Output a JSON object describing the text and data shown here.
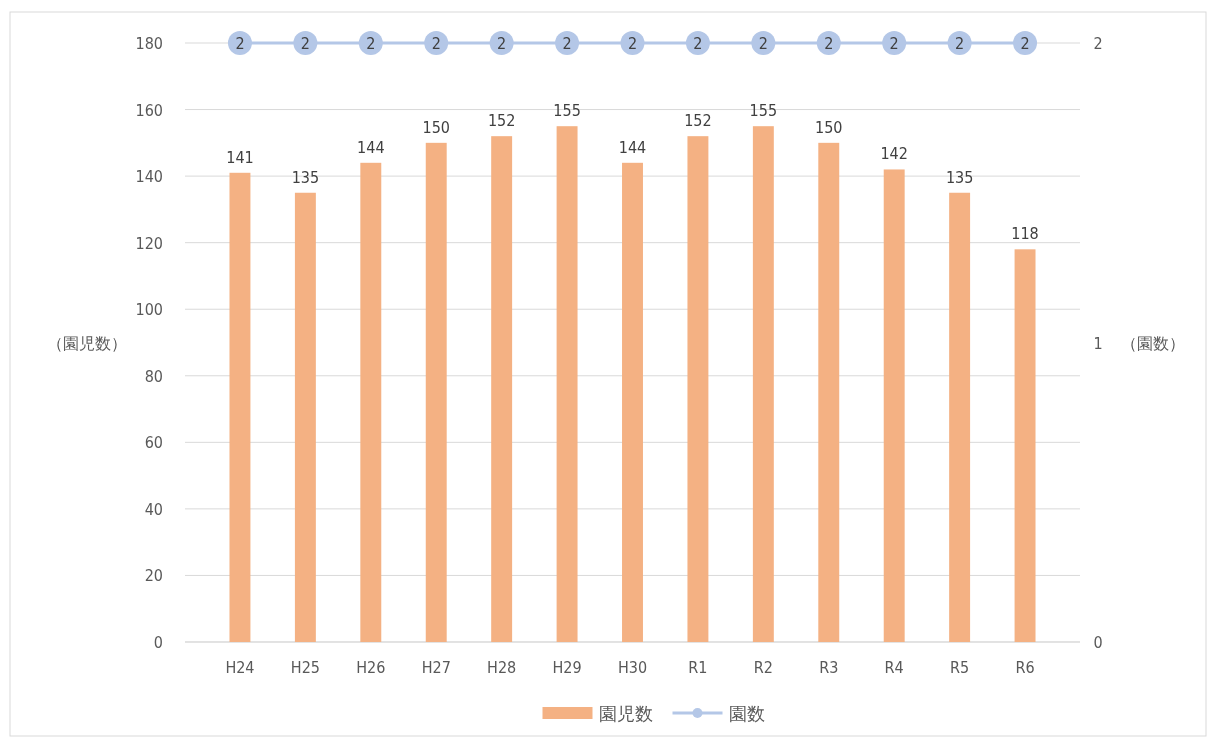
{
  "chart_data": {
    "type": "bar",
    "ylabel": "（園児数）",
    "y2label": "（園数）",
    "categories": [
      "H24",
      "H25",
      "H26",
      "H27",
      "H28",
      "H29",
      "H30",
      "R1",
      "R2",
      "R3",
      "R4",
      "R5",
      "R6"
    ],
    "series": [
      {
        "name": "園児数",
        "color": "#f4b183",
        "values": [
          141,
          135,
          144,
          150,
          152,
          155,
          144,
          152,
          155,
          150,
          142,
          135,
          118
        ]
      },
      {
        "name": "園数",
        "type": "line",
        "axis": "y2",
        "color": "#b4c7e7",
        "marker": "circle",
        "values": [
          2,
          2,
          2,
          2,
          2,
          2,
          2,
          2,
          2,
          2,
          2,
          2,
          2
        ]
      }
    ],
    "ylim": [
      0,
      180
    ],
    "yticks": [
      0,
      20,
      40,
      60,
      80,
      100,
      120,
      140,
      160,
      180
    ],
    "y2lim": [
      0,
      2
    ],
    "y2ticks": [
      0,
      1,
      2
    ],
    "grid": "y",
    "legend": "bottom",
    "data_labels": true
  }
}
